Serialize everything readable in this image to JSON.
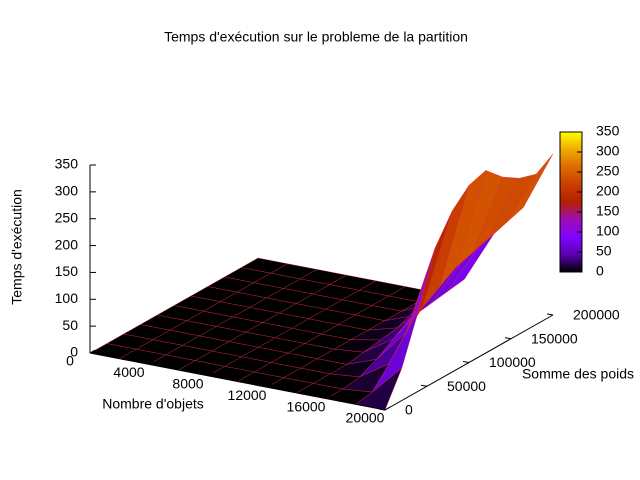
{
  "chart_data": {
    "type": "surface",
    "title": "Temps d'exécution sur le probleme de la partition",
    "x_label": "Nombre d'objets",
    "y_label": "Somme des poids",
    "z_label": "Temps d'exécution",
    "x": [
      0,
      2000,
      4000,
      6000,
      8000,
      10000,
      12000,
      14000,
      16000,
      18000,
      20000
    ],
    "y": [
      0,
      20000,
      40000,
      60000,
      80000,
      100000,
      120000,
      140000,
      160000,
      180000,
      200000
    ],
    "z": [
      [
        0,
        0,
        0,
        0,
        0,
        0,
        0,
        0,
        0,
        0,
        0
      ],
      [
        0,
        0,
        0,
        0,
        0,
        0,
        0,
        0,
        0,
        0,
        0
      ],
      [
        0,
        0,
        0,
        0,
        0,
        0,
        0,
        0,
        0,
        0,
        0
      ],
      [
        0,
        0,
        0,
        0,
        0,
        0,
        0,
        0,
        0,
        0,
        0
      ],
      [
        0,
        0,
        0,
        0,
        0,
        0,
        0,
        0,
        0,
        0,
        0
      ],
      [
        0,
        0,
        0,
        0,
        0,
        0,
        0,
        0,
        0,
        0,
        0
      ],
      [
        0,
        0,
        0,
        0,
        0,
        0,
        0,
        0,
        0,
        0,
        0
      ],
      [
        0,
        0,
        0,
        0,
        5,
        10,
        15,
        20,
        25,
        30,
        35
      ],
      [
        0,
        0,
        5,
        20,
        40,
        60,
        80,
        100,
        110,
        120,
        130
      ],
      [
        0,
        5,
        40,
        80,
        110,
        130,
        150,
        160,
        170,
        180,
        190
      ],
      [
        0,
        60,
        150,
        250,
        300,
        330,
        340,
        310,
        290,
        280,
        300
      ]
    ],
    "xlim": [
      0,
      20000
    ],
    "xticks": [
      0,
      4000,
      8000,
      12000,
      16000,
      20000
    ],
    "ylim": [
      0,
      200000
    ],
    "yticks": [
      0,
      50000,
      100000,
      150000,
      200000
    ],
    "zlim": [
      0,
      350
    ],
    "zticks": [
      0,
      50,
      100,
      150,
      200,
      250,
      300,
      350
    ],
    "colorbar": {
      "lim": [
        0,
        350
      ],
      "ticks": [
        0,
        50,
        100,
        150,
        200,
        250,
        300,
        350
      ]
    },
    "palette": [
      "#000000",
      "#5a00b4",
      "#8004ff",
      "#9c0db4",
      "#b42000",
      "#c93e00",
      "#dd6b00",
      "#eeab00",
      "#ffff00"
    ],
    "mesh_color": "#e0283c"
  }
}
